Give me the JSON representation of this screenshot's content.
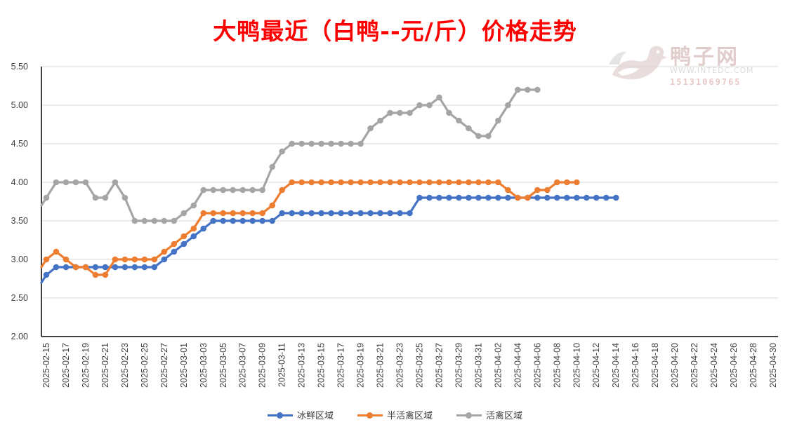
{
  "title": "大鸭最近（白鸭--元/斤）价格走势",
  "watermark": {
    "name": "鸭子网",
    "url": "WWW.INTEDC.COM",
    "phone": "15131069765"
  },
  "colors": {
    "title": "#ff0000",
    "series": [
      "#4472c4",
      "#ed7d31",
      "#a5a5a5"
    ],
    "grid": "#d9d9d9",
    "axis": "#000000"
  },
  "chart_data": {
    "type": "line",
    "ylim": [
      2.0,
      5.5
    ],
    "yticks": [
      "2.00",
      "2.50",
      "3.00",
      "3.50",
      "4.00",
      "4.50",
      "5.00",
      "5.50"
    ],
    "x_start": "2025-02-15",
    "x_end": "2025-04-30",
    "x_tick_labels": [
      "2025-02-15",
      "2025-02-17",
      "2025-02-19",
      "2025-02-21",
      "2025-02-23",
      "2025-02-25",
      "2025-02-27",
      "2025-03-01",
      "2025-03-03",
      "2025-03-05",
      "2025-03-07",
      "2025-03-09",
      "2025-03-11",
      "2025-03-13",
      "2025-03-15",
      "2025-03-17",
      "2025-03-19",
      "2025-03-21",
      "2025-03-23",
      "2025-03-25",
      "2025-03-27",
      "2025-03-29",
      "2025-03-31",
      "2025-04-02",
      "2025-04-04",
      "2025-04-06",
      "2025-04-08",
      "2025-04-10",
      "2025-04-12",
      "2025-04-14",
      "2025-04-16",
      "2025-04-18",
      "2025-04-20",
      "2025-04-22",
      "2025-04-24",
      "2025-04-26",
      "2025-04-28",
      "2025-04-30"
    ],
    "grid": true,
    "legend_position": "bottom",
    "series": [
      {
        "name": "冰鲜区域",
        "start_y": 2.7,
        "values": [
          2.8,
          2.9,
          2.9,
          2.9,
          2.9,
          2.9,
          2.9,
          2.9,
          2.9,
          2.9,
          2.9,
          2.9,
          3.0,
          3.1,
          3.2,
          3.3,
          3.4,
          3.5,
          3.5,
          3.5,
          3.5,
          3.5,
          3.5,
          3.5,
          3.6,
          3.6,
          3.6,
          3.6,
          3.6,
          3.6,
          3.6,
          3.6,
          3.6,
          3.6,
          3.6,
          3.6,
          3.6,
          3.6,
          3.8,
          3.8,
          3.8,
          3.8,
          3.8,
          3.8,
          3.8,
          3.8,
          3.8,
          3.8,
          3.8,
          3.8,
          3.8,
          3.8,
          3.8,
          3.8,
          3.8,
          3.8,
          3.8,
          3.8,
          3.8
        ]
      },
      {
        "name": "半活禽区域",
        "start_y": 2.9,
        "values": [
          3.0,
          3.1,
          3.0,
          2.9,
          2.9,
          2.8,
          2.8,
          3.0,
          3.0,
          3.0,
          3.0,
          3.0,
          3.1,
          3.2,
          3.3,
          3.4,
          3.6,
          3.6,
          3.6,
          3.6,
          3.6,
          3.6,
          3.6,
          3.7,
          3.9,
          4.0,
          4.0,
          4.0,
          4.0,
          4.0,
          4.0,
          4.0,
          4.0,
          4.0,
          4.0,
          4.0,
          4.0,
          4.0,
          4.0,
          4.0,
          4.0,
          4.0,
          4.0,
          4.0,
          4.0,
          4.0,
          4.0,
          3.9,
          3.8,
          3.8,
          3.9,
          3.9,
          4.0,
          4.0,
          4.0
        ]
      },
      {
        "name": "活禽区域",
        "start_y": 3.7,
        "values": [
          3.8,
          4.0,
          4.0,
          4.0,
          4.0,
          3.8,
          3.8,
          4.0,
          3.8,
          3.5,
          3.5,
          3.5,
          3.5,
          3.5,
          3.6,
          3.7,
          3.9,
          3.9,
          3.9,
          3.9,
          3.9,
          3.9,
          3.9,
          4.2,
          4.4,
          4.5,
          4.5,
          4.5,
          4.5,
          4.5,
          4.5,
          4.5,
          4.5,
          4.7,
          4.8,
          4.9,
          4.9,
          4.9,
          5.0,
          5.0,
          5.1,
          4.9,
          4.8,
          4.7,
          4.6,
          4.6,
          4.8,
          5.0,
          5.2,
          5.2,
          5.2
        ]
      }
    ]
  }
}
